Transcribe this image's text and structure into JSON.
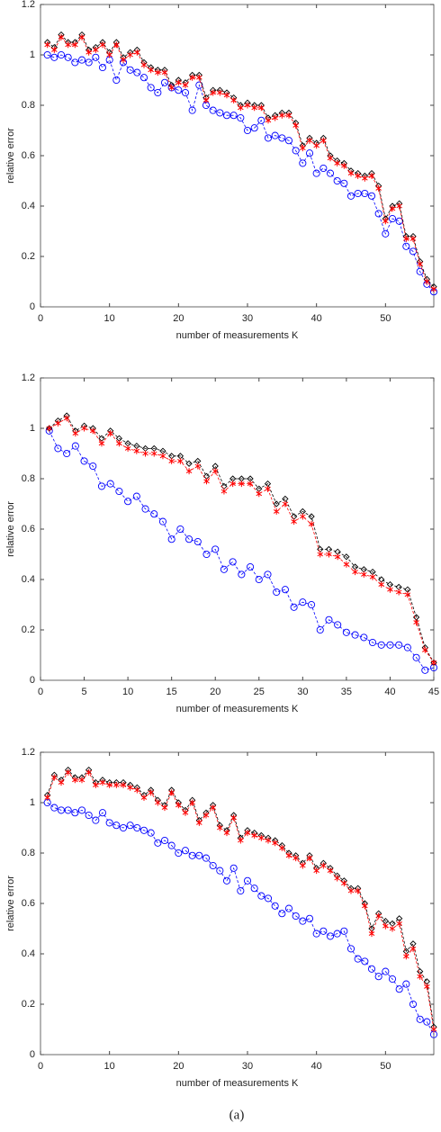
{
  "chart_data": [
    {
      "type": "line",
      "xlabel": "number of measurements K",
      "ylabel": "relative error",
      "x": [
        1,
        2,
        3,
        4,
        5,
        6,
        7,
        8,
        9,
        10,
        11,
        12,
        13,
        14,
        15,
        16,
        17,
        18,
        19,
        20,
        21,
        22,
        23,
        24,
        25,
        26,
        27,
        28,
        29,
        30,
        31,
        32,
        33,
        34,
        35,
        36,
        37,
        38,
        39,
        40,
        41,
        42,
        43,
        44,
        45,
        46,
        47,
        48,
        49,
        50,
        51,
        52,
        53,
        54,
        55,
        56,
        57
      ],
      "xlim": [
        0,
        57
      ],
      "xticks": [
        0,
        10,
        20,
        30,
        40,
        50
      ],
      "ylim": [
        0,
        1.2
      ],
      "yticks": [
        0,
        0.2,
        0.4,
        0.6,
        0.8,
        1,
        1.2
      ],
      "series": [
        {
          "color": "#0000ff",
          "marker": "circle",
          "values": [
            1.0,
            0.99,
            1.0,
            0.99,
            0.97,
            0.98,
            0.97,
            0.99,
            0.95,
            0.98,
            0.9,
            0.97,
            0.94,
            0.93,
            0.91,
            0.87,
            0.85,
            0.89,
            0.87,
            0.86,
            0.85,
            0.78,
            0.88,
            0.8,
            0.78,
            0.77,
            0.76,
            0.76,
            0.75,
            0.7,
            0.71,
            0.74,
            0.67,
            0.68,
            0.67,
            0.66,
            0.62,
            0.57,
            0.61,
            0.53,
            0.55,
            0.53,
            0.5,
            0.49,
            0.44,
            0.45,
            0.45,
            0.44,
            0.37,
            0.29,
            0.35,
            0.34,
            0.24,
            0.22,
            0.14,
            0.09,
            0.06
          ]
        },
        {
          "color": "#000000",
          "marker": "diamond",
          "values": [
            1.05,
            1.03,
            1.08,
            1.05,
            1.05,
            1.08,
            1.02,
            1.03,
            1.05,
            1.01,
            1.05,
            0.99,
            1.01,
            1.02,
            0.97,
            0.95,
            0.94,
            0.94,
            0.88,
            0.9,
            0.89,
            0.92,
            0.92,
            0.83,
            0.86,
            0.86,
            0.85,
            0.83,
            0.8,
            0.81,
            0.8,
            0.8,
            0.75,
            0.76,
            0.77,
            0.77,
            0.73,
            0.64,
            0.67,
            0.65,
            0.67,
            0.6,
            0.58,
            0.57,
            0.54,
            0.53,
            0.52,
            0.53,
            0.48,
            0.35,
            0.4,
            0.41,
            0.28,
            0.28,
            0.18,
            0.11,
            0.08
          ]
        },
        {
          "color": "#ff0000",
          "marker": "star",
          "values": [
            1.04,
            1.02,
            1.07,
            1.04,
            1.04,
            1.07,
            1.01,
            1.02,
            1.04,
            1.0,
            1.04,
            0.98,
            1.0,
            1.01,
            0.96,
            0.94,
            0.93,
            0.93,
            0.87,
            0.89,
            0.88,
            0.91,
            0.91,
            0.82,
            0.85,
            0.85,
            0.84,
            0.82,
            0.79,
            0.8,
            0.79,
            0.79,
            0.74,
            0.75,
            0.76,
            0.76,
            0.72,
            0.63,
            0.66,
            0.64,
            0.66,
            0.59,
            0.57,
            0.56,
            0.53,
            0.52,
            0.51,
            0.52,
            0.47,
            0.34,
            0.39,
            0.4,
            0.27,
            0.27,
            0.17,
            0.1,
            0.07
          ]
        }
      ]
    },
    {
      "type": "line",
      "xlabel": "number of measurements K",
      "ylabel": "relative error",
      "x": [
        1,
        2,
        3,
        4,
        5,
        6,
        7,
        8,
        9,
        10,
        11,
        12,
        13,
        14,
        15,
        16,
        17,
        18,
        19,
        20,
        21,
        22,
        23,
        24,
        25,
        26,
        27,
        28,
        29,
        30,
        31,
        32,
        33,
        34,
        35,
        36,
        37,
        38,
        39,
        40,
        41,
        42,
        43,
        44,
        45
      ],
      "xlim": [
        0,
        45
      ],
      "xticks": [
        0,
        5,
        10,
        15,
        20,
        25,
        30,
        35,
        40,
        45
      ],
      "ylim": [
        0,
        1.2
      ],
      "yticks": [
        0,
        0.2,
        0.4,
        0.6,
        0.8,
        1,
        1.2
      ],
      "series": [
        {
          "color": "#0000ff",
          "marker": "circle",
          "values": [
            0.99,
            0.92,
            0.9,
            0.93,
            0.87,
            0.85,
            0.77,
            0.78,
            0.75,
            0.71,
            0.73,
            0.68,
            0.66,
            0.63,
            0.56,
            0.6,
            0.56,
            0.55,
            0.5,
            0.52,
            0.44,
            0.47,
            0.42,
            0.45,
            0.4,
            0.42,
            0.35,
            0.36,
            0.29,
            0.31,
            0.3,
            0.2,
            0.24,
            0.22,
            0.19,
            0.18,
            0.17,
            0.15,
            0.14,
            0.14,
            0.14,
            0.13,
            0.09,
            0.04,
            0.05
          ]
        },
        {
          "color": "#000000",
          "marker": "diamond",
          "values": [
            1.0,
            1.03,
            1.05,
            0.99,
            1.01,
            1.0,
            0.96,
            0.99,
            0.96,
            0.94,
            0.93,
            0.92,
            0.92,
            0.91,
            0.89,
            0.89,
            0.86,
            0.87,
            0.81,
            0.85,
            0.77,
            0.8,
            0.8,
            0.8,
            0.76,
            0.78,
            0.7,
            0.72,
            0.65,
            0.67,
            0.65,
            0.52,
            0.52,
            0.51,
            0.49,
            0.45,
            0.44,
            0.43,
            0.4,
            0.38,
            0.37,
            0.36,
            0.25,
            0.13,
            0.07
          ]
        },
        {
          "color": "#ff0000",
          "marker": "star",
          "values": [
            1.0,
            1.02,
            1.04,
            0.98,
            1.0,
            0.99,
            0.94,
            0.98,
            0.94,
            0.92,
            0.91,
            0.9,
            0.9,
            0.89,
            0.87,
            0.87,
            0.83,
            0.85,
            0.79,
            0.83,
            0.75,
            0.78,
            0.78,
            0.78,
            0.74,
            0.76,
            0.67,
            0.7,
            0.63,
            0.65,
            0.62,
            0.5,
            0.5,
            0.49,
            0.46,
            0.43,
            0.42,
            0.41,
            0.38,
            0.36,
            0.35,
            0.34,
            0.23,
            0.12,
            0.07
          ]
        }
      ]
    },
    {
      "type": "line",
      "xlabel": "number of measurements K",
      "ylabel": "relative error",
      "x": [
        1,
        2,
        3,
        4,
        5,
        6,
        7,
        8,
        9,
        10,
        11,
        12,
        13,
        14,
        15,
        16,
        17,
        18,
        19,
        20,
        21,
        22,
        23,
        24,
        25,
        26,
        27,
        28,
        29,
        30,
        31,
        32,
        33,
        34,
        35,
        36,
        37,
        38,
        39,
        40,
        41,
        42,
        43,
        44,
        45,
        46,
        47,
        48,
        49,
        50,
        51,
        52,
        53,
        54,
        55,
        56,
        57
      ],
      "xlim": [
        0,
        57
      ],
      "xticks": [
        0,
        10,
        20,
        30,
        40,
        50
      ],
      "ylim": [
        0,
        1.2
      ],
      "yticks": [
        0,
        0.2,
        0.4,
        0.6,
        0.8,
        1,
        1.2
      ],
      "series": [
        {
          "color": "#0000ff",
          "marker": "circle",
          "values": [
            1.0,
            0.98,
            0.97,
            0.97,
            0.96,
            0.97,
            0.95,
            0.93,
            0.96,
            0.92,
            0.91,
            0.9,
            0.91,
            0.9,
            0.89,
            0.88,
            0.84,
            0.85,
            0.83,
            0.8,
            0.81,
            0.79,
            0.79,
            0.78,
            0.75,
            0.73,
            0.69,
            0.74,
            0.65,
            0.69,
            0.66,
            0.63,
            0.62,
            0.59,
            0.56,
            0.58,
            0.55,
            0.53,
            0.54,
            0.48,
            0.49,
            0.47,
            0.48,
            0.49,
            0.42,
            0.38,
            0.37,
            0.34,
            0.31,
            0.33,
            0.3,
            0.26,
            0.28,
            0.2,
            0.14,
            0.13,
            0.08
          ]
        },
        {
          "color": "#000000",
          "marker": "diamond",
          "values": [
            1.03,
            1.11,
            1.09,
            1.13,
            1.1,
            1.1,
            1.13,
            1.08,
            1.09,
            1.08,
            1.08,
            1.08,
            1.07,
            1.06,
            1.03,
            1.05,
            1.01,
            0.99,
            1.05,
            1.0,
            0.97,
            1.01,
            0.93,
            0.96,
            0.99,
            0.91,
            0.89,
            0.95,
            0.86,
            0.89,
            0.88,
            0.87,
            0.86,
            0.85,
            0.83,
            0.8,
            0.79,
            0.76,
            0.79,
            0.74,
            0.76,
            0.74,
            0.71,
            0.69,
            0.66,
            0.66,
            0.6,
            0.5,
            0.56,
            0.53,
            0.52,
            0.54,
            0.41,
            0.44,
            0.33,
            0.29,
            0.11
          ]
        },
        {
          "color": "#ff0000",
          "marker": "star",
          "values": [
            1.02,
            1.1,
            1.08,
            1.12,
            1.09,
            1.09,
            1.12,
            1.07,
            1.08,
            1.07,
            1.07,
            1.07,
            1.06,
            1.05,
            1.02,
            1.04,
            1.0,
            0.98,
            1.04,
            0.99,
            0.96,
            1.0,
            0.92,
            0.95,
            0.98,
            0.9,
            0.88,
            0.94,
            0.85,
            0.88,
            0.87,
            0.86,
            0.85,
            0.84,
            0.82,
            0.79,
            0.78,
            0.75,
            0.78,
            0.73,
            0.75,
            0.73,
            0.7,
            0.68,
            0.65,
            0.65,
            0.59,
            0.48,
            0.55,
            0.51,
            0.5,
            0.52,
            0.39,
            0.42,
            0.31,
            0.27,
            0.1
          ]
        }
      ]
    }
  ],
  "caption": "(a)"
}
